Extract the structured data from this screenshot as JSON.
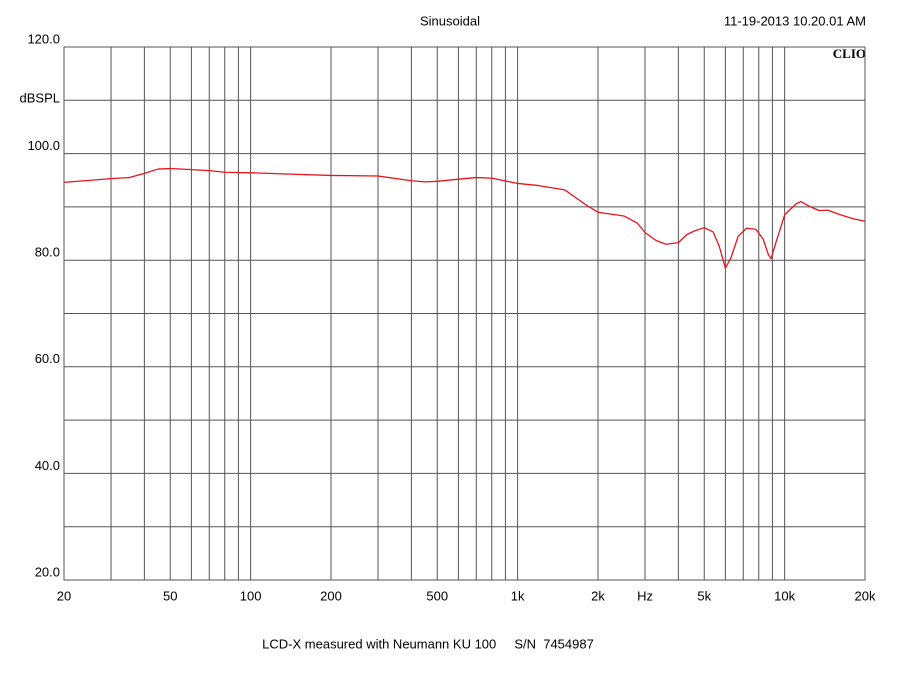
{
  "chart_data": {
    "type": "line",
    "title": "Sinusoidal",
    "timestamp": "11-19-2013 10.20.01 AM",
    "brand": "CLIO",
    "caption": "LCD-X measured with Neumann KU 100     S/N  7454987",
    "ylabel": "dBSPL",
    "xscale": "log",
    "grid": true,
    "xlim": [
      20,
      20000
    ],
    "ylim": [
      20,
      120
    ],
    "xticks": [
      20,
      50,
      100,
      200,
      500,
      {
        "value": 1000,
        "label": "1k"
      },
      {
        "value": 2000,
        "label": "2k"
      },
      {
        "value": 3000,
        "label": "Hz"
      },
      {
        "value": 5000,
        "label": "5k"
      },
      {
        "value": 10000,
        "label": "10k"
      },
      {
        "value": 20000,
        "label": "20k"
      }
    ],
    "xgrid": [
      30,
      40,
      60,
      70,
      80,
      90,
      300,
      400,
      600,
      700,
      800,
      900,
      4000,
      6000,
      7000,
      8000,
      9000
    ],
    "yticks": [
      {
        "value": 20,
        "label": "20.0"
      },
      {
        "value": 40,
        "label": "40.0"
      },
      {
        "value": 60,
        "label": "60.0"
      },
      {
        "value": 80,
        "label": "80.0"
      },
      {
        "value": 100,
        "label": "100.0"
      },
      {
        "value": 120,
        "label": "120.0"
      }
    ],
    "ygrid": [
      30,
      50,
      70,
      90,
      110
    ],
    "ylabel_at": 110,
    "x": [
      20,
      30,
      35,
      40,
      45,
      50,
      60,
      70,
      80,
      100,
      150,
      200,
      300,
      400,
      450,
      500,
      600,
      700,
      800,
      1000,
      1200,
      1500,
      1800,
      2000,
      2500,
      2800,
      3000,
      3300,
      3600,
      4000,
      4300,
      4600,
      5000,
      5400,
      5700,
      6000,
      6300,
      6700,
      7200,
      7800,
      8300,
      8700,
      8900,
      9300,
      10000,
      11000,
      11500,
      12500,
      13500,
      14500,
      16000,
      18000,
      20000
    ],
    "series": [
      {
        "name": "LCD-X",
        "color": "#e8141c",
        "values": [
          94.6,
          95.3,
          95.5,
          96.3,
          97.1,
          97.2,
          97.0,
          96.8,
          96.5,
          96.4,
          96.1,
          95.9,
          95.8,
          94.9,
          94.7,
          94.8,
          95.2,
          95.5,
          95.4,
          94.4,
          94.0,
          93.2,
          90.4,
          89.0,
          88.3,
          87.0,
          85.2,
          83.7,
          83.0,
          83.3,
          84.8,
          85.5,
          86.1,
          85.3,
          82.5,
          78.5,
          80.5,
          84.5,
          86.0,
          85.8,
          84.0,
          81.0,
          80.3,
          83.5,
          88.5,
          90.5,
          91.0,
          90.0,
          89.3,
          89.4,
          88.6,
          87.8,
          87.3
        ]
      }
    ]
  }
}
